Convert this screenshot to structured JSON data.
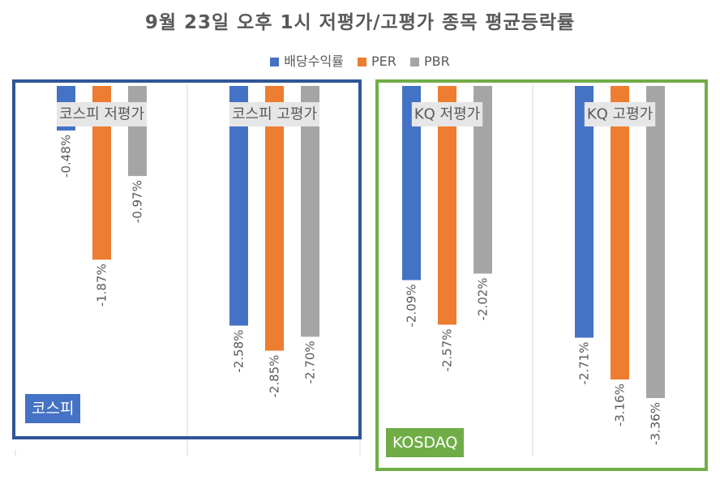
{
  "chart_data": {
    "type": "bar",
    "title": "9월 23일 오후 1시 저평가/고평가 종목 평균등락률",
    "categories": [
      "코스피 저평가",
      "코스피 고평가",
      "KQ 저평가",
      "KQ 고평가"
    ],
    "series": [
      {
        "name": "배당수익률",
        "color": "#4472C4",
        "values": [
          -0.48,
          -2.58,
          -2.09,
          -2.71
        ],
        "labels": [
          "-0.48%",
          "-2.58%",
          "-2.09%",
          "-2.71%"
        ]
      },
      {
        "name": "PER",
        "color": "#ED7D31",
        "values": [
          -1.87,
          -2.85,
          -2.57,
          -3.16
        ],
        "labels": [
          "-1.87%",
          "-2.85%",
          "-2.57%",
          "-3.16%"
        ]
      },
      {
        "name": "PBR",
        "color": "#A5A5A5",
        "values": [
          -0.97,
          -2.7,
          -2.02,
          -3.36
        ],
        "labels": [
          "-0.97%",
          "-2.70%",
          "-2.02%",
          "-3.36%"
        ]
      }
    ],
    "ylim": [
      -3.36,
      0
    ],
    "grid": true,
    "legend_position": "top"
  },
  "annotations": {
    "kospi_box": {
      "label": "코스피",
      "color": "#2F5597"
    },
    "kosdaq_box": {
      "label": "KOSDAQ",
      "color": "#70AD47"
    }
  }
}
